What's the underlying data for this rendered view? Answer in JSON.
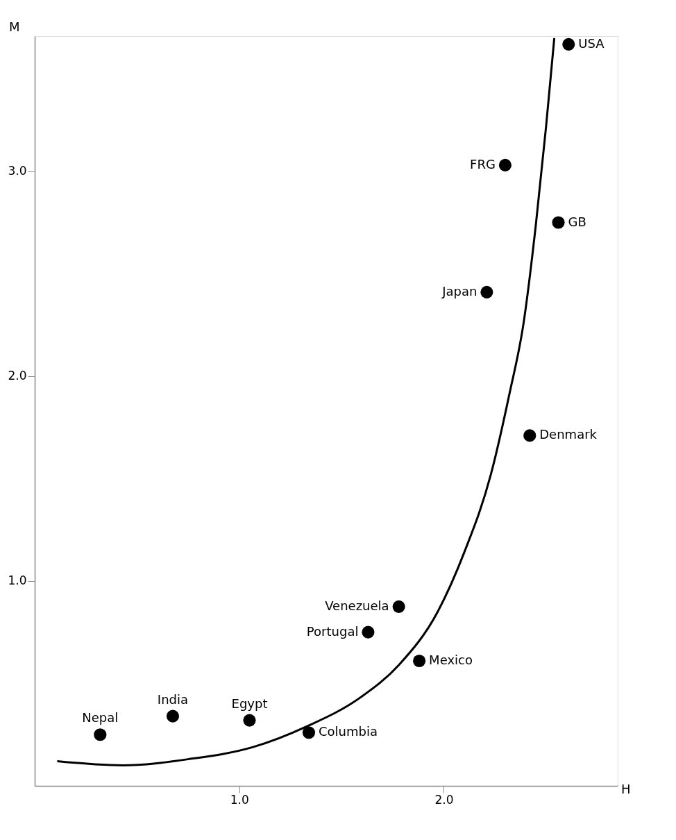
{
  "chart_data": {
    "type": "scatter",
    "xlabel": "H",
    "ylabel": "M",
    "xlim": [
      0,
      2.85
    ],
    "ylim": [
      0,
      3.66
    ],
    "xticks": [
      {
        "value": 1,
        "label": "1.0"
      },
      {
        "value": 2,
        "label": "2.0"
      }
    ],
    "yticks": [
      {
        "value": 1,
        "label": "1.0"
      },
      {
        "value": 2,
        "label": "2.0"
      },
      {
        "value": 3,
        "label": "3.0"
      }
    ],
    "grid": false,
    "marker": "circle",
    "series": [
      {
        "color": "#000000",
        "x": [
          0.32,
          0.675,
          1.05,
          1.34,
          1.63,
          1.78,
          1.88,
          2.21,
          2.42,
          2.3,
          2.56,
          2.61
        ],
        "values": [
          0.25,
          0.34,
          0.32,
          0.26,
          0.75,
          0.875,
          0.61,
          2.41,
          1.71,
          3.03,
          2.75,
          3.62
        ]
      },
      {
        "type": "line",
        "color": "#000000",
        "line_style": "solid",
        "marker": "none",
        "x": [
          0.11,
          0.43,
          0.75,
          1.07,
          1.33,
          1.59,
          1.78,
          1.97,
          2.1,
          2.23,
          2.32,
          2.39,
          2.45,
          2.5,
          2.54
        ],
        "values": [
          0.12,
          0.1,
          0.13,
          0.19,
          0.29,
          0.43,
          0.59,
          0.85,
          1.14,
          1.52,
          1.91,
          2.26,
          2.74,
          3.22,
          3.65
        ]
      }
    ],
    "annotations": [
      {
        "text": "Nepal",
        "x": 0.32,
        "y": 0.25
      },
      {
        "text": "India",
        "x": 0.675,
        "y": 0.34
      },
      {
        "text": "Egypt",
        "x": 1.05,
        "y": 0.32
      },
      {
        "text": "Columbia",
        "x": 1.34,
        "y": 0.26
      },
      {
        "text": "Portugal",
        "x": 1.63,
        "y": 0.75
      },
      {
        "text": "Venezuela",
        "x": 1.78,
        "y": 0.875
      },
      {
        "text": "Mexico",
        "x": 1.88,
        "y": 0.61
      },
      {
        "text": "Japan",
        "x": 2.21,
        "y": 2.41
      },
      {
        "text": "Denmark",
        "x": 2.42,
        "y": 1.71
      },
      {
        "text": "FRG",
        "x": 2.3,
        "y": 3.03
      },
      {
        "text": "GB",
        "x": 2.56,
        "y": 2.75
      },
      {
        "text": "USA",
        "x": 2.61,
        "y": 3.62
      }
    ]
  }
}
